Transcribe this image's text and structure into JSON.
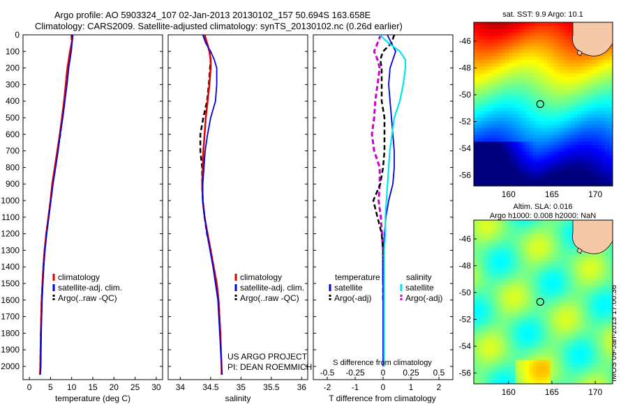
{
  "header": {
    "line1": "Argo profile: AO 5903324_107 02-Jan-2013 20130102_157 50.694S 163.658E",
    "line2": "Climatology: CARS2009. Satellite-adjusted climatology: synTS_20130102.nc (0.26d earlier)"
  },
  "stamp": "IMOS 09-Jan-2013 17:00:36",
  "colors": {
    "climatology": "#dd0000",
    "satellite": "#0000dd",
    "argo": "#000000",
    "salinity_satellite": "#00e5ee",
    "salinity_argo": "#cc00cc"
  },
  "chart_data": [
    {
      "type": "line",
      "id": "temperature",
      "xlabel": "temperature (deg C)",
      "xlim": [
        -1.5,
        31.5
      ],
      "ylim": [
        2080,
        0
      ],
      "x_ticks": [
        0,
        5,
        10,
        15,
        20,
        25,
        30
      ],
      "depth_ticks": [
        0,
        100,
        200,
        300,
        400,
        500,
        600,
        700,
        800,
        900,
        1000,
        1100,
        1200,
        1300,
        1400,
        1500,
        1600,
        1700,
        1800,
        1900,
        2000
      ],
      "legend": [
        "climatology",
        "satellite-adj. clim.",
        "Argo(..raw -QC)"
      ],
      "series": [
        {
          "name": "climatology",
          "x": [
            10.2,
            10.0,
            9.6,
            9.3,
            9.0,
            8.6,
            8.2,
            7.7,
            7.2,
            6.6,
            6.0,
            5.4,
            5.0,
            4.5,
            4.0,
            3.6,
            3.3,
            3.1,
            2.9,
            2.7,
            2.6,
            2.5
          ],
          "depth": [
            0,
            50,
            100,
            150,
            200,
            300,
            400,
            500,
            600,
            700,
            800,
            900,
            1000,
            1100,
            1200,
            1300,
            1400,
            1500,
            1600,
            1800,
            2000,
            2050
          ]
        },
        {
          "name": "satellite-adj. clim.",
          "x": [
            10.3,
            10.1,
            9.9,
            9.6,
            9.3,
            8.9,
            8.4,
            7.9,
            7.3,
            6.8,
            6.2,
            5.6,
            5.1,
            4.6,
            4.1,
            3.7,
            3.4,
            3.2,
            3.0,
            2.8,
            2.7,
            2.6
          ],
          "depth": [
            0,
            50,
            100,
            150,
            200,
            300,
            400,
            500,
            600,
            700,
            800,
            900,
            1000,
            1100,
            1200,
            1300,
            1400,
            1500,
            1600,
            1800,
            2000,
            2050
          ]
        },
        {
          "name": "Argo(..raw -QC)",
          "x": [
            10.0,
            10.0,
            9.7,
            9.4,
            9.1,
            8.7,
            8.3,
            7.8,
            7.3,
            6.7,
            6.1,
            5.5,
            5.0,
            4.5,
            4.0,
            3.6,
            3.3,
            3.1,
            2.9,
            2.7,
            2.6
          ],
          "depth": [
            0,
            50,
            100,
            150,
            200,
            300,
            400,
            500,
            600,
            700,
            800,
            900,
            1000,
            1100,
            1200,
            1300,
            1400,
            1500,
            1600,
            1800,
            2000
          ]
        }
      ]
    },
    {
      "type": "line",
      "id": "salinity",
      "xlabel": "salinity",
      "xlim": [
        33.8,
        36.1
      ],
      "ylim": [
        2080,
        0
      ],
      "x_ticks": [
        34,
        34.5,
        35,
        35.5,
        36
      ],
      "legend": [
        "climatology",
        "satellite-adj. clim.",
        "Argo(..raw -QC)"
      ],
      "annotation": [
        "US ARGO PROJECT",
        "PI: DEAN ROEMMICH"
      ],
      "series": [
        {
          "name": "climatology",
          "x": [
            34.4,
            34.44,
            34.48,
            34.5,
            34.5,
            34.48,
            34.45,
            34.42,
            34.4,
            34.38,
            34.37,
            34.36,
            34.37,
            34.4,
            34.45,
            34.5,
            34.55,
            34.6,
            34.63,
            34.66,
            34.68,
            34.68
          ],
          "depth": [
            0,
            50,
            100,
            150,
            200,
            300,
            400,
            500,
            600,
            700,
            800,
            900,
            1000,
            1100,
            1200,
            1300,
            1400,
            1500,
            1600,
            1800,
            2000,
            2050
          ]
        },
        {
          "name": "satellite-adj. clim.",
          "x": [
            34.37,
            34.42,
            34.5,
            34.56,
            34.6,
            34.6,
            34.58,
            34.5,
            34.45,
            34.41,
            34.39,
            34.37,
            34.37,
            34.4,
            34.44,
            34.49,
            34.54,
            34.58,
            34.62,
            34.65,
            34.68,
            34.69
          ],
          "depth": [
            0,
            50,
            100,
            150,
            200,
            300,
            400,
            500,
            600,
            700,
            800,
            900,
            1000,
            1100,
            1200,
            1300,
            1400,
            1500,
            1600,
            1800,
            2000,
            2050
          ]
        },
        {
          "name": "Argo(..raw -QC)",
          "x": [
            34.4,
            34.44,
            34.48,
            34.5,
            34.49,
            34.47,
            34.44,
            34.38,
            34.33,
            34.33,
            34.36,
            34.36,
            34.37,
            34.4,
            34.44,
            34.5,
            34.55,
            34.6,
            34.63,
            34.66
          ],
          "depth": [
            0,
            50,
            100,
            150,
            200,
            300,
            400,
            500,
            600,
            700,
            800,
            900,
            1000,
            1100,
            1200,
            1300,
            1400,
            1500,
            1600,
            1800
          ]
        }
      ]
    },
    {
      "type": "line",
      "id": "difference",
      "xlabel": "T difference from climatology",
      "x_ticks_label": "S difference from climatology",
      "xlim": [
        -2.5,
        2.5
      ],
      "ylim": [
        2080,
        0
      ],
      "x_ticks": [
        -2,
        -1,
        0,
        1,
        2
      ],
      "s_ticks": [
        -0.5,
        -0.25,
        0,
        0.25,
        0.5
      ],
      "legend_temperature": {
        "header": "temperature",
        "items": [
          "satellite",
          "Argo(-adj)"
        ]
      },
      "legend_salinity": {
        "header": "salinity",
        "items": [
          "satellite",
          "Argo(-adj)"
        ]
      },
      "series": [
        {
          "name": "satellite",
          "group": "temperature",
          "x": [
            0.15,
            0.3,
            0.45,
            0.35,
            0.25,
            0.2,
            0.25,
            0.3,
            0.35,
            0.4,
            0.4,
            0.35,
            0.2,
            0.1,
            0.05,
            0.02,
            0,
            0,
            0,
            0,
            0
          ],
          "depth": [
            0,
            50,
            100,
            150,
            200,
            300,
            400,
            500,
            600,
            700,
            800,
            900,
            1000,
            1100,
            1200,
            1300,
            1400,
            1500,
            1600,
            1800,
            2000
          ]
        },
        {
          "name": "Argo(-adj)",
          "group": "temperature",
          "x": [
            0.4,
            0.3,
            0.0,
            -0.1,
            -0.05,
            -0.05,
            -0.05,
            0.05,
            0.05,
            0.05,
            0.0,
            -0.1,
            -0.35,
            -0.2,
            -0.05,
            0,
            0,
            0,
            0
          ],
          "depth": [
            0,
            50,
            100,
            150,
            200,
            300,
            400,
            500,
            600,
            700,
            800,
            900,
            1000,
            1100,
            1200,
            1300,
            1400,
            1500,
            1600
          ]
        },
        {
          "name": "satellite",
          "group": "salinity",
          "x": [
            -0.03,
            0.05,
            0.15,
            0.2,
            0.2,
            0.18,
            0.15,
            0.1,
            0.08,
            0.06,
            0.05,
            0.04,
            0.03,
            0.02,
            0.02,
            0.01,
            0.01,
            0.01,
            0.01,
            0.01,
            0.01
          ],
          "depth": [
            0,
            50,
            100,
            150,
            200,
            300,
            400,
            500,
            600,
            700,
            800,
            900,
            1000,
            1100,
            1200,
            1300,
            1400,
            1500,
            1600,
            1800,
            2000
          ]
        },
        {
          "name": "Argo(-adj)",
          "group": "salinity",
          "x": [
            -0.02,
            -0.05,
            -0.08,
            -0.05,
            -0.03,
            -0.05,
            -0.07,
            -0.08,
            -0.1,
            -0.08,
            -0.03,
            -0.03,
            -0.04,
            -0.02,
            -0.01,
            0,
            0,
            0
          ],
          "depth": [
            0,
            50,
            100,
            150,
            200,
            300,
            400,
            500,
            600,
            700,
            800,
            900,
            1000,
            1100,
            1200,
            1300,
            1400,
            1500
          ]
        }
      ]
    },
    {
      "type": "heatmap",
      "id": "sst_map",
      "title": "sat. SST: 9.9 Argo: 10.1",
      "xlim": [
        156,
        172
      ],
      "ylim": [
        -56.8,
        -44.6
      ],
      "x_ticks": [
        160,
        165,
        170
      ],
      "y_ticks": [
        -46,
        -48,
        -50,
        -52,
        -54,
        -56
      ],
      "marker": {
        "lon": 163.658,
        "lat": -50.694
      },
      "color_scale": [
        "#00007f",
        "#0000ff",
        "#007fff",
        "#00ffff",
        "#7fff7f",
        "#ffff00",
        "#ff7f00",
        "#ff0000",
        "#7f0000"
      ]
    },
    {
      "type": "heatmap",
      "id": "sla_map",
      "title": "Altim. SLA: 0.016",
      "subtitle": "Argo h1000: 0.008 h2000: NaN",
      "xlim": [
        156,
        172
      ],
      "ylim": [
        -56.8,
        -44.6
      ],
      "x_ticks": [
        160,
        165,
        170
      ],
      "y_ticks": [
        -46,
        -48,
        -50,
        -52,
        -54,
        -56
      ],
      "marker": {
        "lon": 163.658,
        "lat": -50.694
      },
      "color_scale": [
        "#00007f",
        "#0000ff",
        "#007fff",
        "#00ffff",
        "#7fff7f",
        "#ffff00",
        "#ff7f00",
        "#ff0000",
        "#7f0000"
      ]
    }
  ]
}
